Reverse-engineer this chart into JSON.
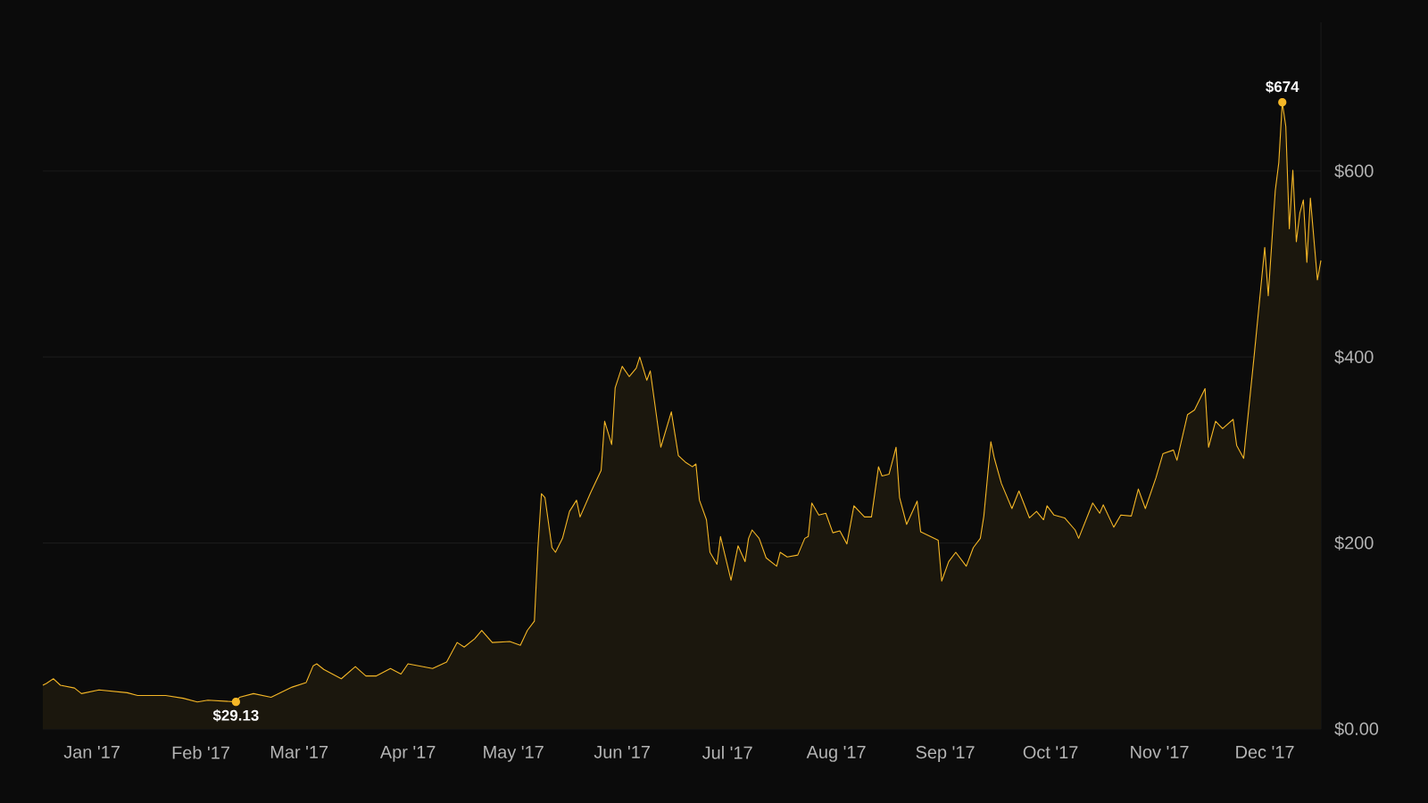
{
  "chart_data": {
    "type": "area",
    "color": "#f5b727",
    "x": [
      "2016-12-18",
      "2016-12-19",
      "2016-12-21",
      "2016-12-23",
      "2016-12-27",
      "2016-12-29",
      "2017-01-03",
      "2017-01-11",
      "2017-01-14",
      "2017-01-22",
      "2017-01-27",
      "2017-01-31",
      "2017-02-03",
      "2017-02-11",
      "2017-02-12",
      "2017-02-16",
      "2017-02-21",
      "2017-02-27",
      "2017-03-03",
      "2017-03-05",
      "2017-03-06",
      "2017-03-08",
      "2017-03-13",
      "2017-03-17",
      "2017-03-20",
      "2017-03-23",
      "2017-03-27",
      "2017-03-30",
      "2017-04-01",
      "2017-04-08",
      "2017-04-12",
      "2017-04-15",
      "2017-04-17",
      "2017-04-20",
      "2017-04-22",
      "2017-04-25",
      "2017-04-30",
      "2017-05-03",
      "2017-05-05",
      "2017-05-07",
      "2017-05-08",
      "2017-05-09",
      "2017-05-10",
      "2017-05-12",
      "2017-05-13",
      "2017-05-15",
      "2017-05-17",
      "2017-05-19",
      "2017-05-20",
      "2017-05-23",
      "2017-05-26",
      "2017-05-27",
      "2017-05-29",
      "2017-05-30",
      "2017-06-01",
      "2017-06-03",
      "2017-06-05",
      "2017-06-06",
      "2017-06-08",
      "2017-06-09",
      "2017-06-12",
      "2017-06-15",
      "2017-06-17",
      "2017-06-19",
      "2017-06-21",
      "2017-06-22",
      "2017-06-23",
      "2017-06-25",
      "2017-06-26",
      "2017-06-28",
      "2017-06-29",
      "2017-07-02",
      "2017-07-04",
      "2017-07-06",
      "2017-07-07",
      "2017-07-08",
      "2017-07-10",
      "2017-07-12",
      "2017-07-15",
      "2017-07-16",
      "2017-07-18",
      "2017-07-21",
      "2017-07-23",
      "2017-07-24",
      "2017-07-25",
      "2017-07-27",
      "2017-07-29",
      "2017-07-31",
      "2017-08-02",
      "2017-08-04",
      "2017-08-06",
      "2017-08-09",
      "2017-08-11",
      "2017-08-13",
      "2017-08-14",
      "2017-08-16",
      "2017-08-18",
      "2017-08-19",
      "2017-08-21",
      "2017-08-24",
      "2017-08-25",
      "2017-08-30",
      "2017-08-31",
      "2017-09-02",
      "2017-09-04",
      "2017-09-07",
      "2017-09-09",
      "2017-09-11",
      "2017-09-12",
      "2017-09-14",
      "2017-09-15",
      "2017-09-17",
      "2017-09-20",
      "2017-09-22",
      "2017-09-25",
      "2017-09-27",
      "2017-09-29",
      "2017-09-30",
      "2017-10-02",
      "2017-10-05",
      "2017-10-08",
      "2017-10-09",
      "2017-10-13",
      "2017-10-15",
      "2017-10-16",
      "2017-10-19",
      "2017-10-21",
      "2017-10-24",
      "2017-10-26",
      "2017-10-28",
      "2017-10-31",
      "2017-11-02",
      "2017-11-05",
      "2017-11-06",
      "2017-11-09",
      "2017-11-11",
      "2017-11-14",
      "2017-11-15",
      "2017-11-17",
      "2017-11-19",
      "2017-11-22",
      "2017-11-23",
      "2017-11-25",
      "2017-11-28",
      "2017-12-01",
      "2017-12-02",
      "2017-12-04",
      "2017-12-05",
      "2017-12-06",
      "2017-12-07",
      "2017-12-08",
      "2017-12-09",
      "2017-12-10",
      "2017-12-11",
      "2017-12-12",
      "2017-12-13",
      "2017-12-14",
      "2017-12-16",
      "2017-12-17"
    ],
    "values": [
      47,
      49,
      54,
      47,
      44,
      38,
      42,
      39,
      36,
      36,
      33,
      29,
      31,
      29.13,
      34,
      38,
      34,
      45,
      50,
      68,
      70,
      64,
      54,
      67,
      57,
      57,
      65,
      59,
      70,
      65,
      72,
      93,
      88,
      97,
      106,
      93,
      94,
      90,
      106,
      116,
      195,
      253,
      249,
      195,
      190,
      205,
      234,
      246,
      228,
      254,
      278,
      331,
      306,
      367,
      390,
      379,
      388,
      400,
      375,
      385,
      303,
      341,
      294,
      287,
      282,
      285,
      246,
      225,
      190,
      177,
      207,
      160,
      197,
      180,
      205,
      214,
      205,
      184,
      175,
      190,
      185,
      187,
      205,
      207,
      243,
      230,
      232,
      211,
      213,
      199,
      240,
      228,
      228,
      282,
      272,
      274,
      303,
      249,
      220,
      245,
      212,
      203,
      159,
      180,
      190,
      175,
      195,
      205,
      229,
      309,
      291,
      264,
      237,
      256,
      227,
      234,
      225,
      240,
      230,
      227,
      214,
      205,
      243,
      232,
      241,
      217,
      230,
      229,
      258,
      237,
      270,
      296,
      300,
      289,
      338,
      343,
      366,
      303,
      331,
      323,
      333,
      305,
      291,
      402,
      518,
      466,
      579,
      609,
      674,
      648,
      538,
      601,
      524,
      555,
      569,
      502,
      571,
      483,
      504
    ],
    "xlim": [
      "2016-12-18",
      "2017-12-17"
    ],
    "xticks": [
      {
        "value": "2017-01-01",
        "label": "Jan '17"
      },
      {
        "value": "2017-02-01",
        "label": "Feb '17"
      },
      {
        "value": "2017-03-01",
        "label": "Mar '17"
      },
      {
        "value": "2017-04-01",
        "label": "Apr '17"
      },
      {
        "value": "2017-05-01",
        "label": "May '17"
      },
      {
        "value": "2017-06-01",
        "label": "Jun '17"
      },
      {
        "value": "2017-07-01",
        "label": "Jul '17"
      },
      {
        "value": "2017-08-01",
        "label": "Aug '17"
      },
      {
        "value": "2017-09-01",
        "label": "Sep '17"
      },
      {
        "value": "2017-10-01",
        "label": "Oct '17"
      },
      {
        "value": "2017-11-01",
        "label": "Nov '17"
      },
      {
        "value": "2017-12-01",
        "label": "Dec '17"
      }
    ],
    "ylim": [
      0,
      760
    ],
    "yticks": [
      {
        "value": 0,
        "label": "$0.00"
      },
      {
        "value": 200,
        "label": "$200"
      },
      {
        "value": 400,
        "label": "$400"
      },
      {
        "value": 600,
        "label": "$600"
      }
    ],
    "grid": "y",
    "annotations": [
      {
        "text": "$674",
        "x": "2017-12-06",
        "y": 674
      },
      {
        "text": "$29.13",
        "x": "2017-02-11",
        "y": 29.13
      }
    ]
  }
}
